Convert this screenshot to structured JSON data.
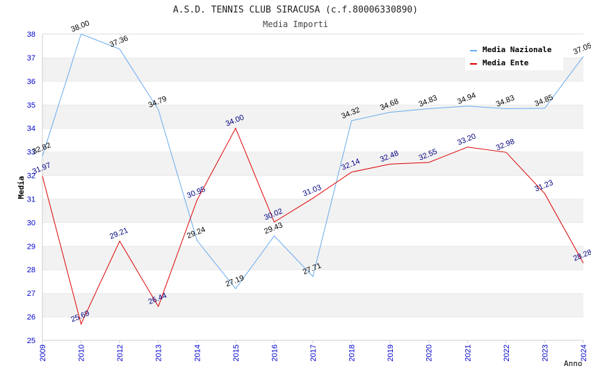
{
  "chart_data": {
    "type": "line",
    "title": "A.S.D. TENNIS CLUB SIRACUSA (c.f.80006330890)",
    "subtitle": "Media Importi",
    "xlabel": "Anno",
    "ylabel": "Media",
    "ylim": [
      25,
      38
    ],
    "yticks": [
      25,
      26,
      27,
      28,
      29,
      30,
      31,
      32,
      33,
      34,
      35,
      36,
      37,
      38
    ],
    "categories": [
      "2009",
      "2010",
      "2012",
      "2013",
      "2014",
      "2015",
      "2016",
      "2017",
      "2018",
      "2019",
      "2020",
      "2021",
      "2022",
      "2023",
      "2024"
    ],
    "series": [
      {
        "name": "Media Nazionale",
        "color": "#66aaee",
        "label_color": "#000000",
        "values": [
          32.82,
          38.0,
          37.36,
          34.79,
          29.24,
          27.19,
          29.43,
          27.71,
          34.32,
          34.68,
          34.83,
          34.94,
          34.83,
          34.85,
          37.05
        ],
        "labels": [
          "32.82",
          "38.00",
          "37.36",
          "34.79",
          "29.24",
          "27.19",
          "29.43",
          "27.71",
          "34.32",
          "34.68",
          "34.83",
          "34.94",
          "34.83",
          "34.85",
          "37.05"
        ]
      },
      {
        "name": "Media Ente",
        "color": "#dd0000",
        "label_color": "#000080",
        "values": [
          31.97,
          25.69,
          29.21,
          26.44,
          30.95,
          34.0,
          30.02,
          31.03,
          32.14,
          32.48,
          32.55,
          33.2,
          32.98,
          31.23,
          28.28
        ],
        "labels": [
          "31.97",
          "25.69",
          "29.21",
          "26.44",
          "30.95",
          "34.00",
          "30.02",
          "31.03",
          "32.14",
          "32.48",
          "32.55",
          "33.20",
          "32.98",
          "31.23",
          "28.28"
        ]
      }
    ],
    "legend_position": "top-right",
    "grid": true
  }
}
